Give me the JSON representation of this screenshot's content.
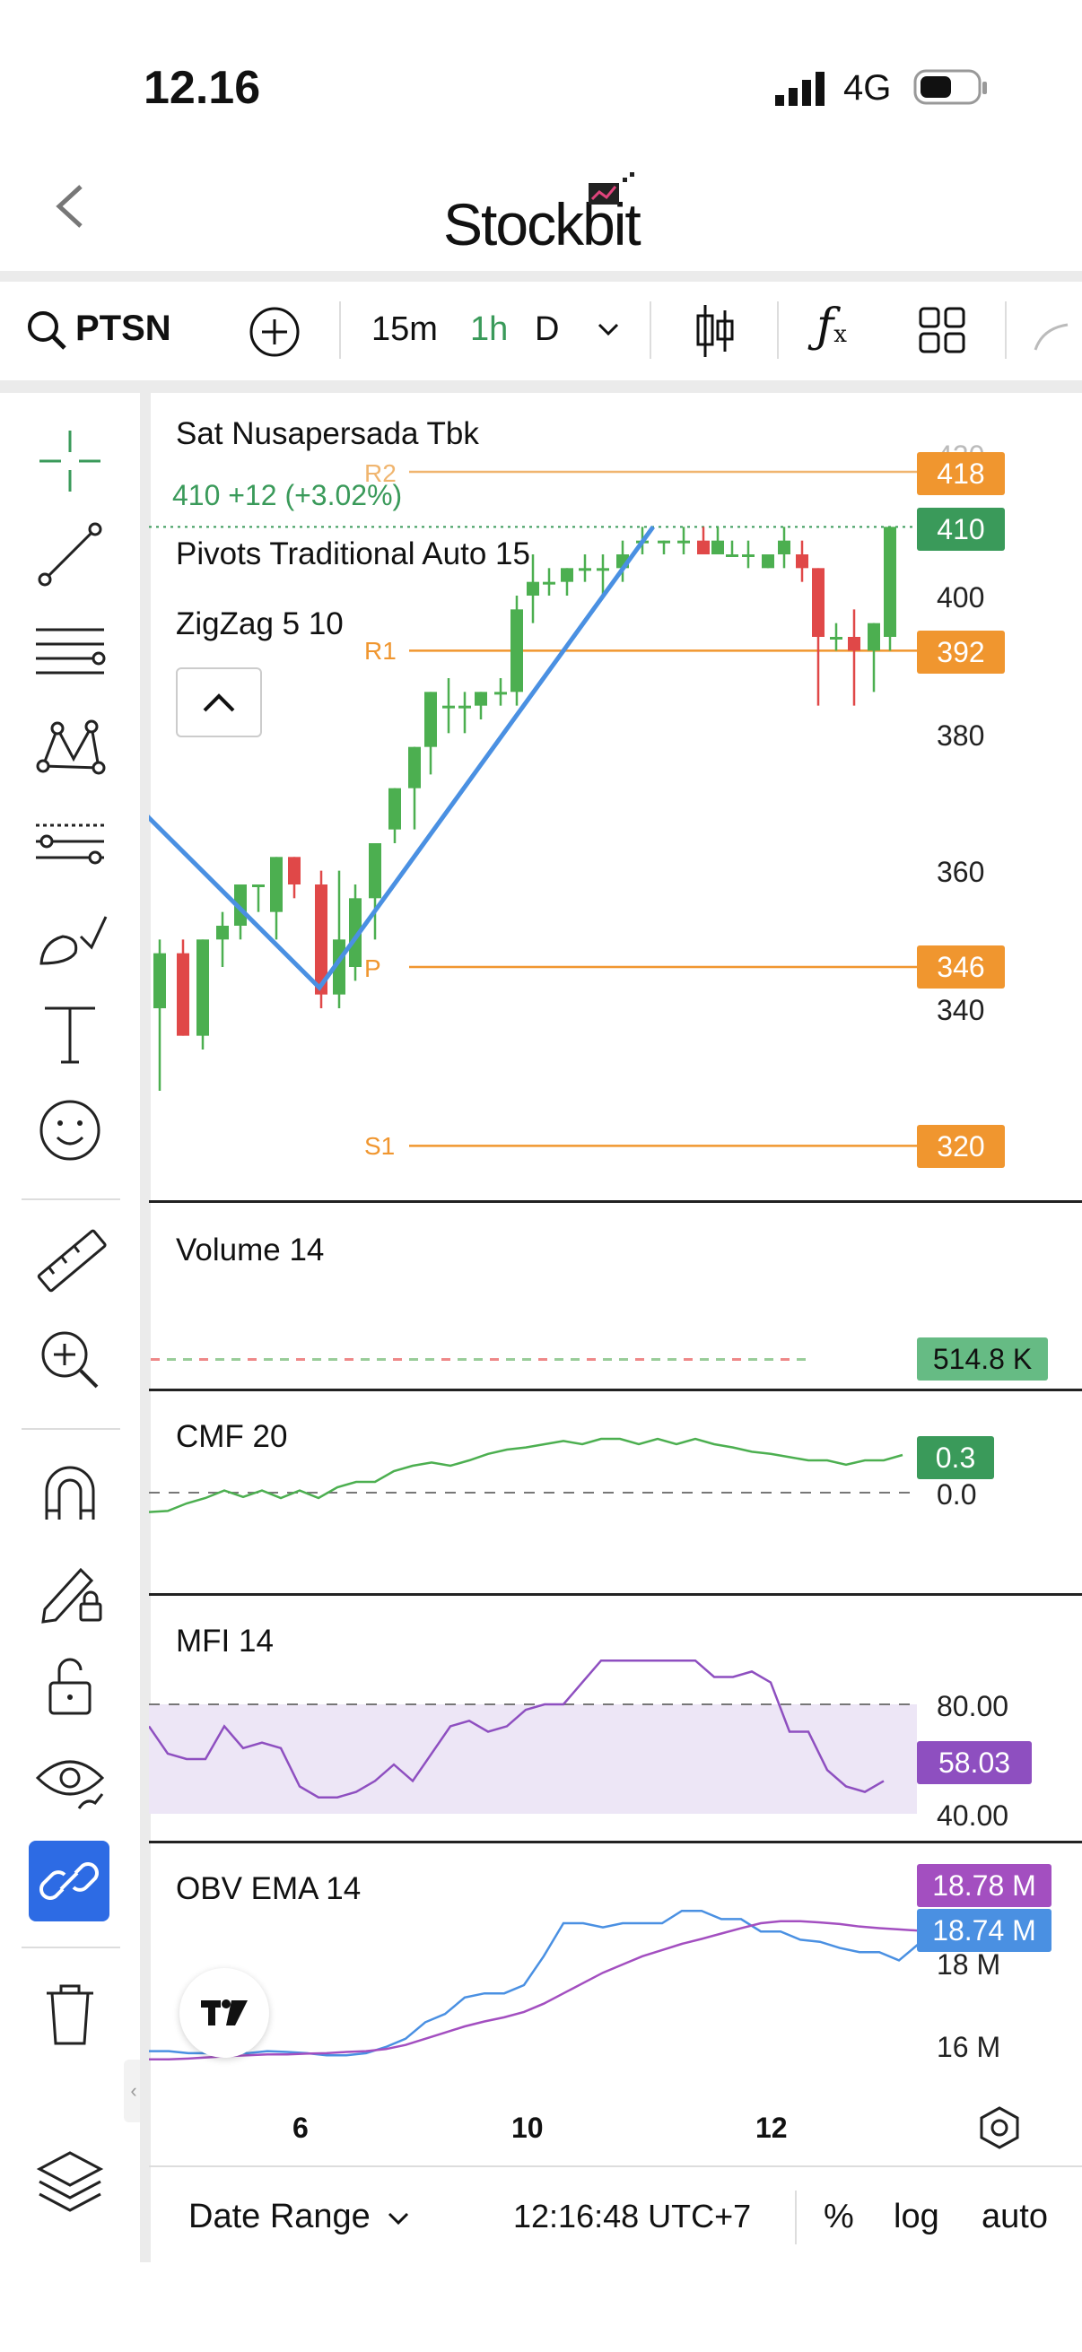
{
  "status": {
    "time": "12.16",
    "network": "4G"
  },
  "header": {
    "logo": "Stockbit"
  },
  "toolbar": {
    "ticker": "PTSN",
    "intervals": [
      "15m",
      "1h",
      "D"
    ],
    "active_interval": "1h"
  },
  "chart": {
    "title": "Sat Nusapersada Tbk",
    "price_change": "410  +12 (+3.02%)",
    "indicator_1": "Pivots Traditional Auto 15",
    "indicator_2": "ZigZag 5 10",
    "pivots": {
      "r2": "R2",
      "r1": "R1",
      "p": "P",
      "s1": "S1"
    },
    "price_tags": {
      "r2": "418",
      "last": "410",
      "r1": "392",
      "p": "346",
      "s1": "320"
    },
    "price_axis": [
      "400",
      "380",
      "360",
      "340"
    ],
    "partial_top_label": "420"
  },
  "volume": {
    "label": "Volume 14",
    "value": "514.8 K"
  },
  "cmf": {
    "label": "CMF 20",
    "value": "0.3",
    "zero": "0.0"
  },
  "mfi": {
    "label": "MFI 14",
    "value": "58.03",
    "upper": "80.00",
    "lower": "40.00"
  },
  "obv": {
    "label": "OBV EMA 14",
    "value_1": "18.78 M",
    "value_2": "18.74 M",
    "axis": [
      "18 M",
      "16 M"
    ]
  },
  "time_axis": [
    "6",
    "10",
    "12"
  ],
  "bottom": {
    "date_range": "Date Range",
    "clock": "12:16:48 UTC+7",
    "percent": "%",
    "log": "log",
    "auto": "auto"
  },
  "colors": {
    "up": "#4caf50",
    "down": "#e04848",
    "pivot": "#f0962f",
    "zigzag": "#4a90e2",
    "mfi": "#8e4fc0",
    "obv_blue": "#4a90e2",
    "obv_purple": "#a34fc0",
    "accent_green": "#3a9a5a"
  }
}
